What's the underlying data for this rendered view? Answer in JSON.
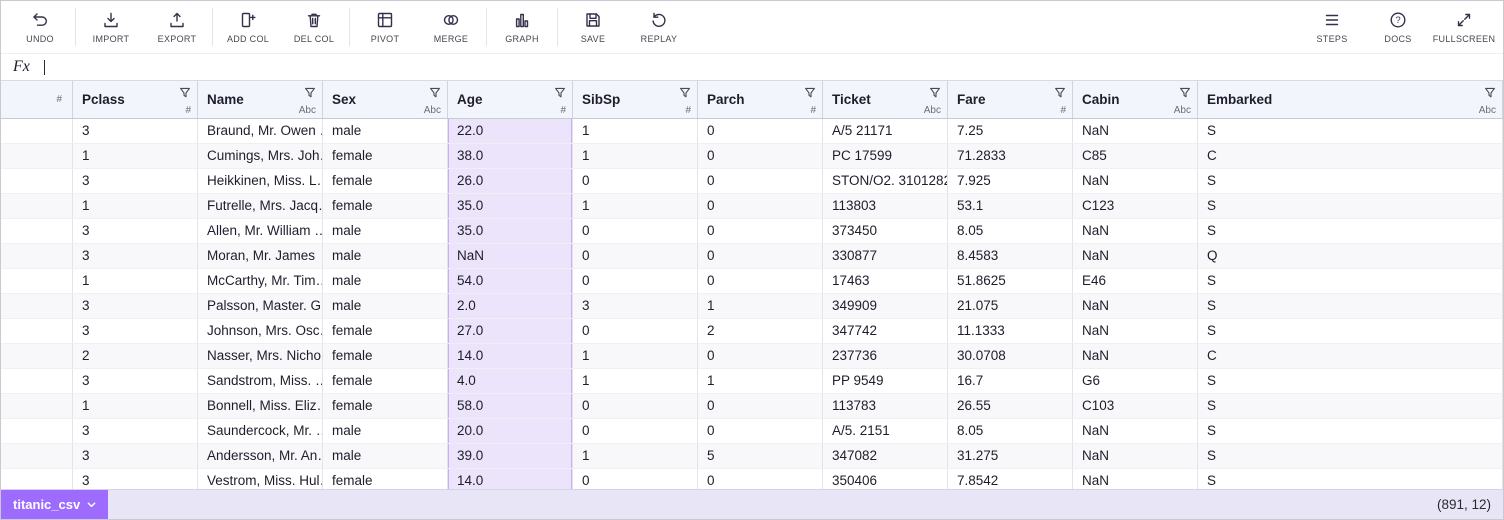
{
  "colors": {
    "accent": "#9d6cff",
    "selection_bg": "#ece4fb",
    "footer_bg": "#e7e5f6"
  },
  "toolbar": {
    "groups": [
      [
        {
          "label": "UNDO",
          "icon": "undo-icon"
        }
      ],
      [
        {
          "label": "IMPORT",
          "icon": "import-icon"
        },
        {
          "label": "EXPORT",
          "icon": "export-icon"
        }
      ],
      [
        {
          "label": "ADD COL",
          "icon": "add-column-icon"
        },
        {
          "label": "DEL COL",
          "icon": "delete-column-icon"
        }
      ],
      [
        {
          "label": "PIVOT",
          "icon": "pivot-icon"
        },
        {
          "label": "MERGE",
          "icon": "merge-icon"
        }
      ],
      [
        {
          "label": "GRAPH",
          "icon": "graph-icon"
        }
      ],
      [
        {
          "label": "SAVE",
          "icon": "save-icon"
        },
        {
          "label": "REPLAY",
          "icon": "replay-icon"
        }
      ]
    ],
    "right_items": [
      {
        "label": "STEPS",
        "icon": "steps-icon"
      },
      {
        "label": "DOCS",
        "icon": "docs-icon"
      },
      {
        "label": "FULLSCREEN",
        "icon": "fullscreen-icon"
      }
    ]
  },
  "formula_bar": {
    "label": "Fx",
    "value": ""
  },
  "table": {
    "index_header_type": "#",
    "selected_column": "Age",
    "columns": [
      {
        "name": "Pclass",
        "type": "#"
      },
      {
        "name": "Name",
        "type": "Abc"
      },
      {
        "name": "Sex",
        "type": "Abc"
      },
      {
        "name": "Age",
        "type": "#"
      },
      {
        "name": "SibSp",
        "type": "#"
      },
      {
        "name": "Parch",
        "type": "#"
      },
      {
        "name": "Ticket",
        "type": "Abc"
      },
      {
        "name": "Fare",
        "type": "#"
      },
      {
        "name": "Cabin",
        "type": "Abc"
      },
      {
        "name": "Embarked",
        "type": "Abc"
      }
    ],
    "rows": [
      [
        "3",
        "Braund, Mr. Owen …",
        "male",
        "22.0",
        "1",
        "0",
        "A/5 21171",
        "7.25",
        "NaN",
        "S"
      ],
      [
        "1",
        "Cumings, Mrs. Joh…",
        "female",
        "38.0",
        "1",
        "0",
        "PC 17599",
        "71.2833",
        "C85",
        "C"
      ],
      [
        "3",
        "Heikkinen, Miss. L…",
        "female",
        "26.0",
        "0",
        "0",
        "STON/O2. 3101282",
        "7.925",
        "NaN",
        "S"
      ],
      [
        "1",
        "Futrelle, Mrs. Jacq…",
        "female",
        "35.0",
        "1",
        "0",
        "113803",
        "53.1",
        "C123",
        "S"
      ],
      [
        "3",
        "Allen, Mr. William …",
        "male",
        "35.0",
        "0",
        "0",
        "373450",
        "8.05",
        "NaN",
        "S"
      ],
      [
        "3",
        "Moran, Mr. James",
        "male",
        "NaN",
        "0",
        "0",
        "330877",
        "8.4583",
        "NaN",
        "Q"
      ],
      [
        "1",
        "McCarthy, Mr. Tim…",
        "male",
        "54.0",
        "0",
        "0",
        "17463",
        "51.8625",
        "E46",
        "S"
      ],
      [
        "3",
        "Palsson, Master. G…",
        "male",
        "2.0",
        "3",
        "1",
        "349909",
        "21.075",
        "NaN",
        "S"
      ],
      [
        "3",
        "Johnson, Mrs. Osc…",
        "female",
        "27.0",
        "0",
        "2",
        "347742",
        "11.1333",
        "NaN",
        "S"
      ],
      [
        "2",
        "Nasser, Mrs. Nicho…",
        "female",
        "14.0",
        "1",
        "0",
        "237736",
        "30.0708",
        "NaN",
        "C"
      ],
      [
        "3",
        "Sandstrom, Miss. …",
        "female",
        "4.0",
        "1",
        "1",
        "PP 9549",
        "16.7",
        "G6",
        "S"
      ],
      [
        "1",
        "Bonnell, Miss. Eliz…",
        "female",
        "58.0",
        "0",
        "0",
        "113783",
        "26.55",
        "C103",
        "S"
      ],
      [
        "3",
        "Saundercock, Mr. …",
        "male",
        "20.0",
        "0",
        "0",
        "A/5. 2151",
        "8.05",
        "NaN",
        "S"
      ],
      [
        "3",
        "Andersson, Mr. An…",
        "male",
        "39.0",
        "1",
        "5",
        "347082",
        "31.275",
        "NaN",
        "S"
      ],
      [
        "3",
        "Vestrom, Miss. Hul…",
        "female",
        "14.0",
        "0",
        "0",
        "350406",
        "7.8542",
        "NaN",
        "S"
      ]
    ]
  },
  "footer": {
    "tab_label": "titanic_csv",
    "dimensions": "(891, 12)"
  }
}
